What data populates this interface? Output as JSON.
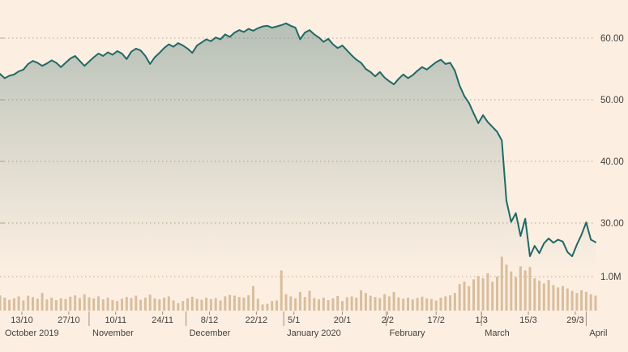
{
  "style": {
    "background": "#fcefe2",
    "line_color": "#206966",
    "fill_color": "#40706c",
    "grid_color": "#b9a58f",
    "tick_color": "#a08f7c",
    "volume_color": "#d9bd9c",
    "text_color": "#453f3a"
  },
  "chart_data": {
    "type": "area",
    "title": "",
    "grid": true,
    "y_axis": {
      "position": "right",
      "ticks": [
        60,
        50,
        40,
        30
      ],
      "labels": [
        "60.00",
        "50.00",
        "40.00",
        "30.00"
      ],
      "range": [
        21.5,
        65.0
      ]
    },
    "volume_axis": {
      "label": "1.0M",
      "value": 1.0,
      "unit": "M",
      "max": 1.65
    },
    "x_ticks": [
      {
        "date": "2019-10-13",
        "label": "13/10"
      },
      {
        "date": "2019-10-27",
        "label": "27/10"
      },
      {
        "date": "2019-11-10",
        "label": "10/11"
      },
      {
        "date": "2019-11-24",
        "label": "24/11"
      },
      {
        "date": "2019-12-08",
        "label": "8/12"
      },
      {
        "date": "2019-12-22",
        "label": "22/12"
      },
      {
        "date": "2020-01-05",
        "label": "5/1"
      },
      {
        "date": "2020-01-20",
        "label": "20/1"
      },
      {
        "date": "2020-02-02",
        "label": "2/2"
      },
      {
        "date": "2020-02-17",
        "label": "17/2"
      },
      {
        "date": "2020-03-01",
        "label": "1/3"
      },
      {
        "date": "2020-03-15",
        "label": "15/3"
      },
      {
        "date": "2020-03-29",
        "label": "29/3"
      }
    ],
    "months": [
      {
        "date": "2019-10-07",
        "label": "October 2019"
      },
      {
        "date": "2019-11-01",
        "label": "November"
      },
      {
        "date": "2019-12-01",
        "label": "December"
      },
      {
        "date": "2020-01-01",
        "label": "January 2020"
      },
      {
        "date": "2020-02-01",
        "label": "February"
      },
      {
        "date": "2020-03-01",
        "label": "March"
      },
      {
        "date": "2020-04-01",
        "label": "April"
      }
    ],
    "dates": [
      "2019-10-07",
      "2019-10-08",
      "2019-10-09",
      "2019-10-10",
      "2019-10-11",
      "2019-10-14",
      "2019-10-15",
      "2019-10-16",
      "2019-10-17",
      "2019-10-18",
      "2019-10-21",
      "2019-10-22",
      "2019-10-23",
      "2019-10-24",
      "2019-10-25",
      "2019-10-28",
      "2019-10-29",
      "2019-10-30",
      "2019-10-31",
      "2019-11-01",
      "2019-11-04",
      "2019-11-05",
      "2019-11-06",
      "2019-11-07",
      "2019-11-08",
      "2019-11-11",
      "2019-11-12",
      "2019-11-13",
      "2019-11-14",
      "2019-11-15",
      "2019-11-18",
      "2019-11-19",
      "2019-11-20",
      "2019-11-21",
      "2019-11-22",
      "2019-11-25",
      "2019-11-26",
      "2019-11-27",
      "2019-11-28",
      "2019-11-29",
      "2019-12-02",
      "2019-12-03",
      "2019-12-04",
      "2019-12-05",
      "2019-12-06",
      "2019-12-09",
      "2019-12-10",
      "2019-12-11",
      "2019-12-12",
      "2019-12-13",
      "2019-12-16",
      "2019-12-17",
      "2019-12-18",
      "2019-12-19",
      "2019-12-20",
      "2019-12-23",
      "2019-12-24",
      "2019-12-26",
      "2019-12-27",
      "2019-12-30",
      "2019-12-31",
      "2020-01-02",
      "2020-01-03",
      "2020-01-06",
      "2020-01-07",
      "2020-01-08",
      "2020-01-09",
      "2020-01-10",
      "2020-01-13",
      "2020-01-14",
      "2020-01-15",
      "2020-01-16",
      "2020-01-17",
      "2020-01-20",
      "2020-01-21",
      "2020-01-22",
      "2020-01-23",
      "2020-01-24",
      "2020-01-27",
      "2020-01-28",
      "2020-01-29",
      "2020-01-30",
      "2020-01-31",
      "2020-02-03",
      "2020-02-04",
      "2020-02-05",
      "2020-02-06",
      "2020-02-07",
      "2020-02-10",
      "2020-02-11",
      "2020-02-12",
      "2020-02-13",
      "2020-02-14",
      "2020-02-17",
      "2020-02-18",
      "2020-02-19",
      "2020-02-20",
      "2020-02-21",
      "2020-02-24",
      "2020-02-25",
      "2020-02-26",
      "2020-02-27",
      "2020-02-28",
      "2020-03-02",
      "2020-03-03",
      "2020-03-04",
      "2020-03-05",
      "2020-03-06",
      "2020-03-09",
      "2020-03-10",
      "2020-03-11",
      "2020-03-12",
      "2020-03-13",
      "2020-03-16",
      "2020-03-17",
      "2020-03-18",
      "2020-03-19",
      "2020-03-20",
      "2020-03-23",
      "2020-03-24",
      "2020-03-25",
      "2020-03-26",
      "2020-03-27",
      "2020-03-30",
      "2020-03-31",
      "2020-04-01",
      "2020-04-02",
      "2020-04-03"
    ],
    "prices": [
      54.2,
      53.5,
      53.9,
      54.1,
      54.6,
      54.9,
      55.8,
      56.3,
      56.0,
      55.5,
      55.9,
      56.4,
      56.0,
      55.3,
      56.0,
      56.7,
      57.1,
      56.3,
      55.5,
      56.2,
      56.9,
      57.5,
      57.1,
      57.7,
      57.3,
      57.9,
      57.5,
      56.6,
      57.8,
      58.3,
      58.0,
      57.1,
      55.8,
      56.9,
      57.6,
      58.4,
      59.0,
      58.6,
      59.2,
      58.8,
      58.3,
      57.6,
      58.8,
      59.3,
      59.8,
      59.5,
      60.1,
      59.8,
      60.6,
      60.2,
      60.9,
      61.3,
      61.0,
      61.5,
      61.2,
      61.6,
      61.9,
      62.0,
      61.7,
      61.9,
      62.1,
      62.4,
      62.0,
      61.7,
      59.8,
      60.9,
      61.3,
      60.6,
      60.1,
      59.4,
      59.9,
      59.0,
      58.4,
      58.8,
      58.0,
      57.2,
      56.5,
      56.0,
      55.0,
      54.5,
      53.8,
      54.5,
      53.6,
      53.0,
      52.5,
      53.4,
      54.1,
      53.5,
      54.0,
      54.7,
      55.3,
      54.9,
      55.5,
      56.1,
      56.5,
      55.8,
      56.0,
      54.7,
      52.3,
      50.6,
      49.5,
      47.8,
      46.2,
      47.5,
      46.4,
      45.6,
      44.8,
      43.4,
      33.6,
      30.2,
      31.6,
      27.9,
      30.7,
      24.6,
      26.3,
      25.1,
      26.7,
      27.5,
      26.8,
      27.3,
      27.0,
      25.3,
      24.6,
      26.5,
      28.1,
      30.1,
      27.3,
      26.9
    ],
    "volumes": [
      0.45,
      0.38,
      0.32,
      0.36,
      0.42,
      0.3,
      0.44,
      0.4,
      0.35,
      0.52,
      0.33,
      0.38,
      0.31,
      0.36,
      0.34,
      0.41,
      0.45,
      0.37,
      0.48,
      0.39,
      0.36,
      0.42,
      0.33,
      0.38,
      0.31,
      0.28,
      0.35,
      0.4,
      0.37,
      0.44,
      0.32,
      0.38,
      0.47,
      0.36,
      0.33,
      0.38,
      0.42,
      0.3,
      0.22,
      0.28,
      0.36,
      0.41,
      0.35,
      0.32,
      0.38,
      0.34,
      0.37,
      0.3,
      0.42,
      0.46,
      0.44,
      0.4,
      0.38,
      0.45,
      0.72,
      0.35,
      0.18,
      0.2,
      0.28,
      0.3,
      1.18,
      0.48,
      0.42,
      0.36,
      0.55,
      0.4,
      0.58,
      0.37,
      0.33,
      0.38,
      0.31,
      0.36,
      0.43,
      0.28,
      0.39,
      0.42,
      0.38,
      0.6,
      0.52,
      0.44,
      0.4,
      0.37,
      0.48,
      0.42,
      0.55,
      0.39,
      0.35,
      0.38,
      0.33,
      0.37,
      0.41,
      0.36,
      0.34,
      0.3,
      0.38,
      0.42,
      0.45,
      0.52,
      0.78,
      0.85,
      0.72,
      0.92,
      1.02,
      0.95,
      1.1,
      0.85,
      1.0,
      1.58,
      1.35,
      1.15,
      0.98,
      1.3,
      1.18,
      1.28,
      0.95,
      0.88,
      0.8,
      0.9,
      0.75,
      0.68,
      0.72,
      0.65,
      0.58,
      0.52,
      0.6,
      0.55,
      0.48,
      0.44
    ]
  }
}
